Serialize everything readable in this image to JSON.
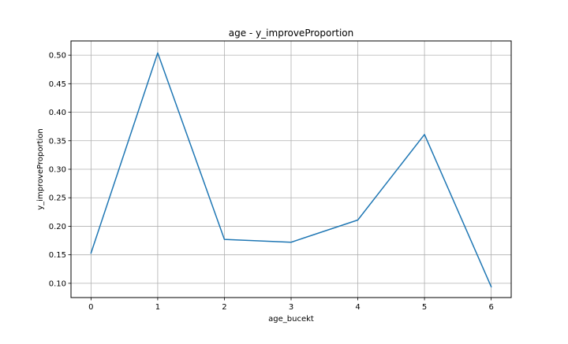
{
  "chart_data": {
    "type": "line",
    "title": "age - y_improveProportion",
    "xlabel": "age_bucekt",
    "ylabel": "y_improveProportion",
    "x": [
      0,
      1,
      2,
      3,
      4,
      5,
      6
    ],
    "series": [
      {
        "values": [
          0.153,
          0.504,
          0.177,
          0.172,
          0.211,
          0.361,
          0.094
        ]
      }
    ],
    "xlim": [
      -0.3,
      6.3
    ],
    "ylim": [
      0.075,
      0.525
    ],
    "xticks": [
      0,
      1,
      2,
      3,
      4,
      5,
      6
    ],
    "yticks": [
      0.1,
      0.15,
      0.2,
      0.25,
      0.3,
      0.35,
      0.4,
      0.45,
      0.5
    ],
    "xtick_labels": [
      "0",
      "1",
      "2",
      "3",
      "4",
      "5",
      "6"
    ],
    "ytick_labels": [
      "0.10",
      "0.15",
      "0.20",
      "0.25",
      "0.30",
      "0.35",
      "0.40",
      "0.45",
      "0.50"
    ],
    "grid": true,
    "line_color": "#1f77b4",
    "grid_color": "#b0b0b0"
  }
}
